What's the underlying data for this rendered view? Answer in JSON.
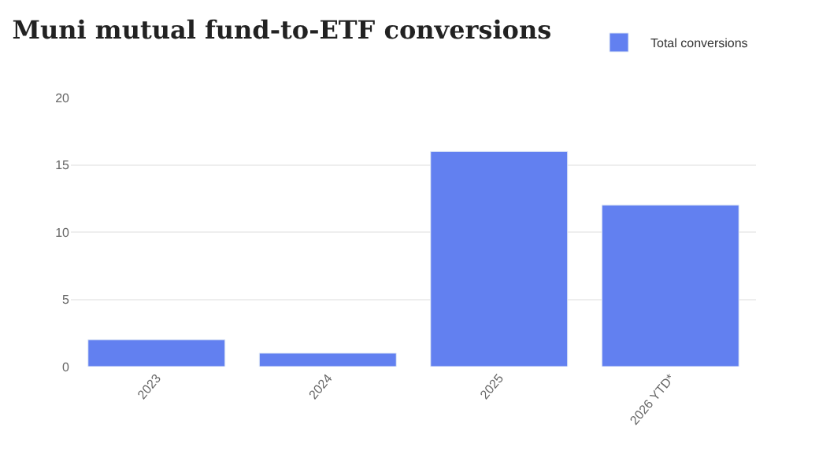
{
  "chart_data": {
    "type": "bar",
    "title": "Muni mutual fund-to-ETF conversions",
    "categories": [
      "2023",
      "2024",
      "2025",
      "2026 YTD*"
    ],
    "series": [
      {
        "name": "Total conversions",
        "color": "#6280f0",
        "values": [
          2,
          1,
          16,
          12
        ]
      }
    ],
    "ylim": [
      0,
      20
    ],
    "yticks": [
      0,
      5,
      10,
      15,
      20
    ],
    "grid": "y",
    "legend": "top right"
  }
}
